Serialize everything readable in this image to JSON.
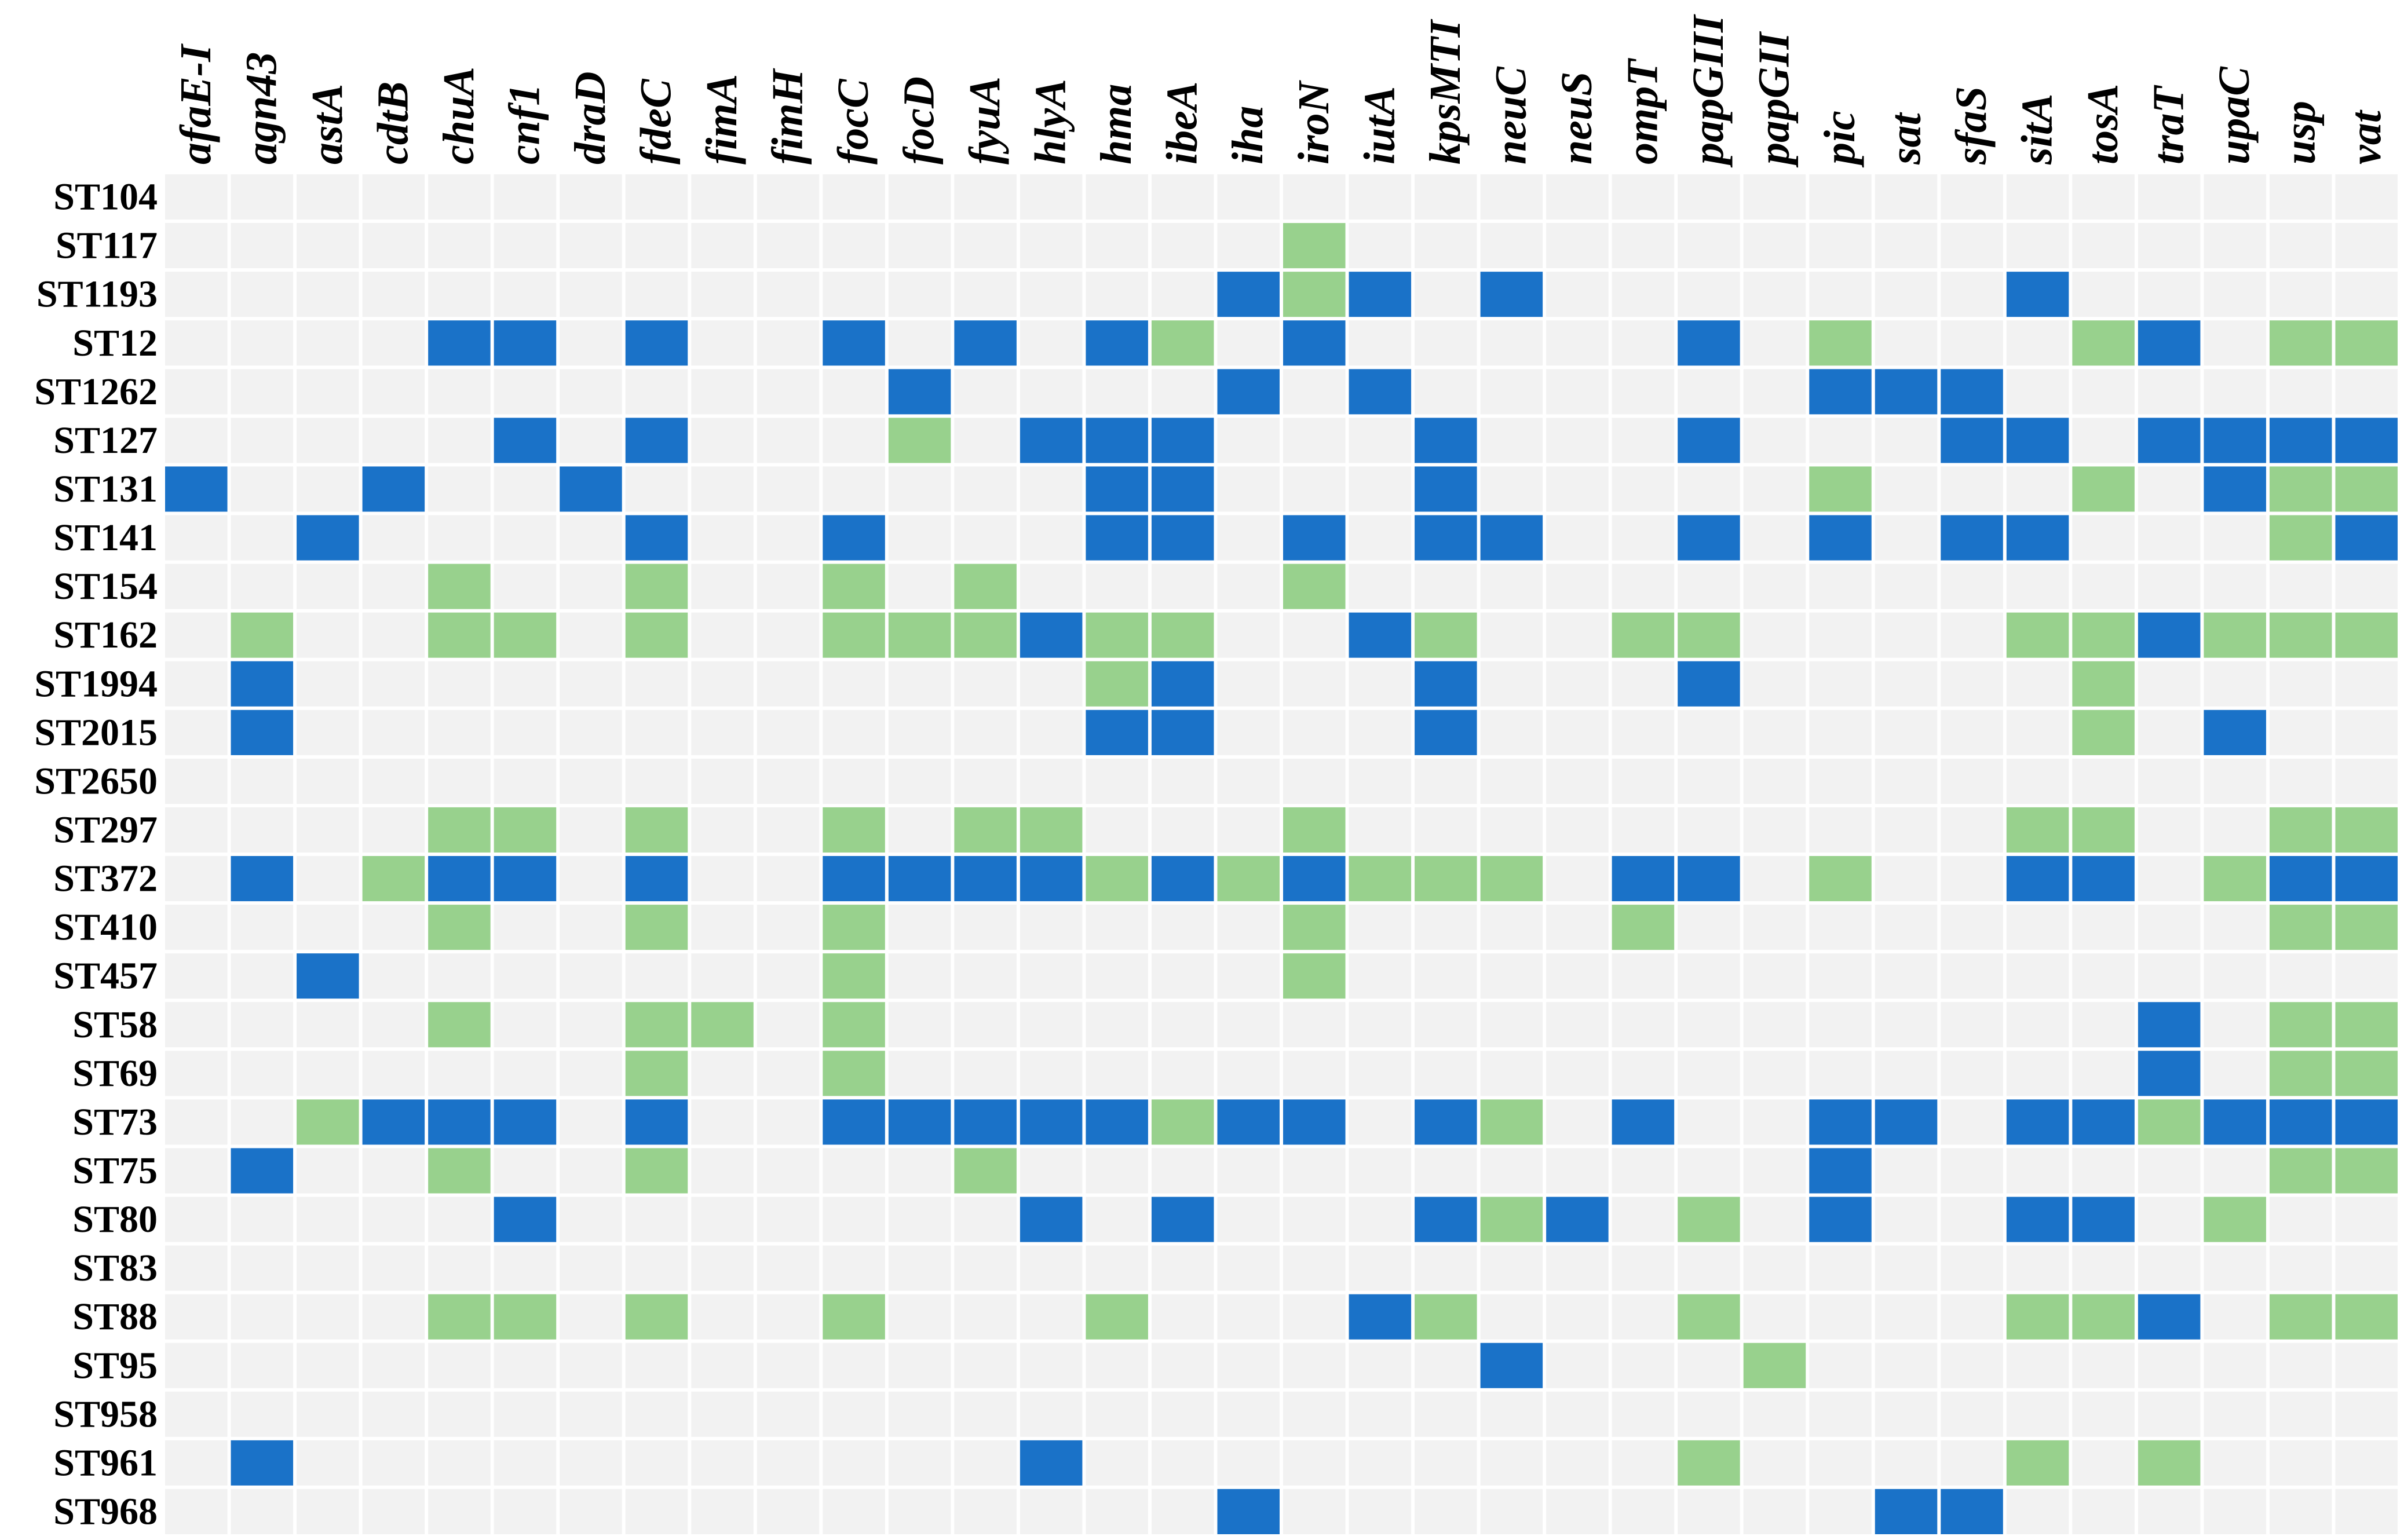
{
  "chart_data": {
    "type": "heatmap",
    "title": "",
    "xlabel": "",
    "ylabel": "",
    "columns": [
      "afaE-I",
      "agn43",
      "astA",
      "cdtB",
      "chuA",
      "cnf1",
      "draD",
      "fdeC",
      "fimA",
      "fimH",
      "focC",
      "focD",
      "fyuA",
      "hlyA",
      "hma",
      "ibeA",
      "iha",
      "iroN",
      "iutA",
      "kpsMTI",
      "neuC",
      "neuS",
      "ompT",
      "papGIII",
      "papGII",
      "pic",
      "sat",
      "sfaS",
      "sitA",
      "tosA",
      "traT",
      "upaC",
      "usp",
      "vat"
    ],
    "rows": [
      "ST104",
      "ST117",
      "ST1193",
      "ST12",
      "ST1262",
      "ST127",
      "ST131",
      "ST141",
      "ST154",
      "ST162",
      "ST1994",
      "ST2015",
      "ST2650",
      "ST297",
      "ST372",
      "ST410",
      "ST457",
      "ST58",
      "ST69",
      "ST73",
      "ST75",
      "ST80",
      "ST83",
      "ST88",
      "ST95",
      "ST958",
      "ST961",
      "ST968"
    ],
    "matrix": [
      "0000000000000000000000000000000000",
      "0000000000000000010000000000000000",
      "0000000000000000212020000000200000",
      "0000220200202021020000020100012011",
      "0000000000020000202000000222000000",
      "0000020200010222000200020002202222",
      "2002002000000022000200000100010211",
      "0020000200200022020220020202200012",
      "0000100100101000010000000000000000",
      "0100110100111211002100110000112111",
      "0200000000000012000200020000010000",
      "0200000000000022000200000000010200",
      "0000000000000000000000000000000000",
      "0000110100101100010000000000110011",
      "0201220200222212121110220100220122",
      "0000100100100000010000100000000011",
      "0020000000100000010000000000000000",
      "0000100110100000000000000000002011",
      "0000000100100000000000000000002011",
      "0012220200222221220210200220221222",
      "0200100100001000000000000200000011",
      "0000020000000202000212010200220100",
      "0000000000000000000000000000000000",
      "0000110100100010002100010000112011",
      "0000000000000000000020001000000000",
      "0000000000000000000000000000000000",
      "0200000000000200000000010000101000",
      "0000000000000000200000000022000000"
    ],
    "value_levels": [
      {
        "value": 0,
        "color": "#f2f2f2"
      },
      {
        "value": 1,
        "color": "#98d18d"
      },
      {
        "value": 2,
        "color": "#1a72c8"
      }
    ],
    "legend": "none",
    "grid": true
  }
}
